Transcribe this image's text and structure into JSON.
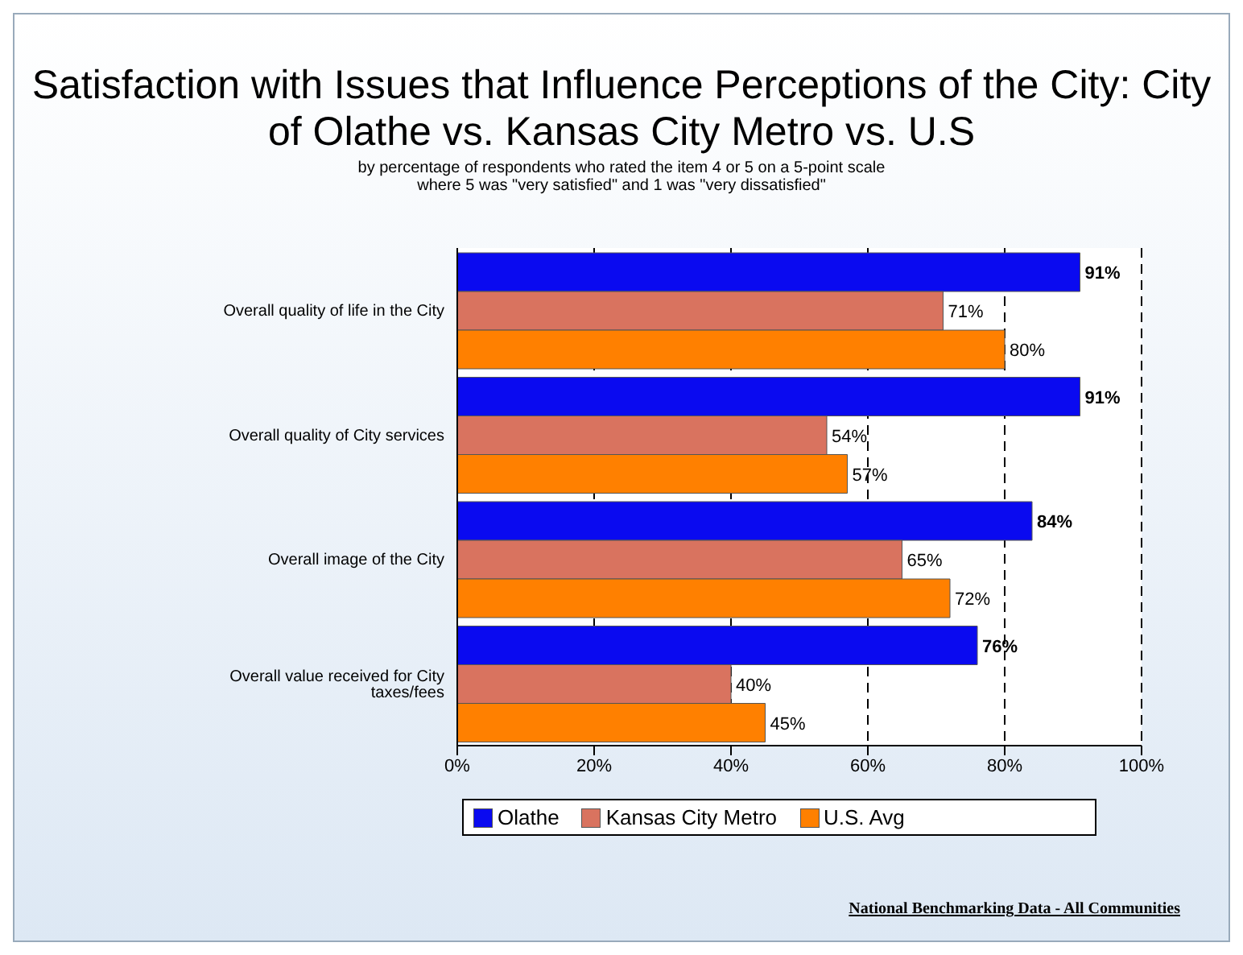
{
  "chart_data": {
    "type": "bar",
    "orientation": "horizontal",
    "title": "Satisfaction with Issues that Influence Perceptions of the City: City of Olathe vs. Kansas City Metro vs. U.S",
    "subtitle": "by percentage of respondents who rated the item 4 or 5 on a 5-point scale\nwhere 5 was \"very satisfied\" and 1 was \"very dissatisfied\"",
    "categories": [
      "Overall quality of life in the City",
      "Overall quality of City services",
      "Overall image of the City",
      "Overall value received for City taxes/fees"
    ],
    "series": [
      {
        "name": "Olathe",
        "color": "#0a0af0",
        "values": [
          91,
          91,
          84,
          76
        ],
        "value_labels": [
          "91%",
          "91%",
          "84%",
          "76%"
        ]
      },
      {
        "name": "Kansas City Metro",
        "color": "#d9735f",
        "values": [
          71,
          54,
          65,
          40
        ],
        "value_labels": [
          "71%",
          "54%",
          "65%",
          "40%"
        ]
      },
      {
        "name": "U.S. Avg",
        "color": "#ff8000",
        "values": [
          80,
          57,
          72,
          45
        ],
        "value_labels": [
          "80%",
          "57%",
          "72%",
          "45%"
        ]
      }
    ],
    "xlim": [
      0,
      100
    ],
    "xticks": [
      {
        "value": 0,
        "label": "0%"
      },
      {
        "value": 20,
        "label": "20%"
      },
      {
        "value": 40,
        "label": "40%"
      },
      {
        "value": 60,
        "label": "60%"
      },
      {
        "value": 80,
        "label": "80%"
      },
      {
        "value": 100,
        "label": "100%"
      }
    ],
    "grid": "x",
    "legend": "bottom",
    "annotations": [
      "National Benchmarking Data - All Communities"
    ]
  }
}
